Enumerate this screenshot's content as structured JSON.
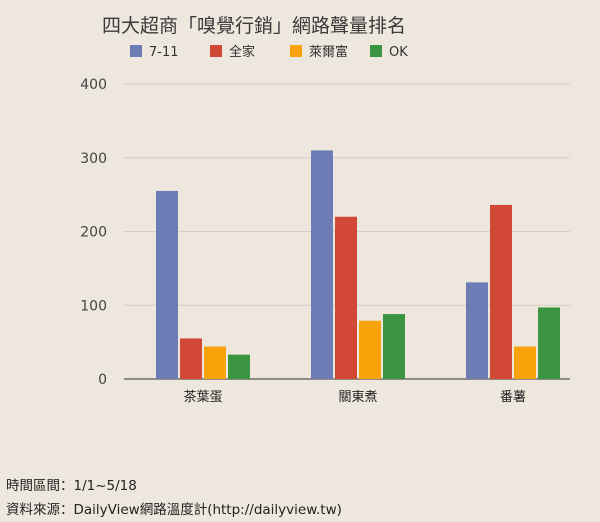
{
  "chart_data": {
    "type": "bar",
    "title": "四大超商「嗅覺行銷」網路聲量排名",
    "categories": [
      "茶葉蛋",
      "關東煮",
      "番薯"
    ],
    "series": [
      {
        "name": "7-11",
        "color": "#6d7cb5",
        "values": [
          255,
          310,
          131
        ]
      },
      {
        "name": "全家",
        "color": "#d14836",
        "values": [
          55,
          220,
          236
        ]
      },
      {
        "name": "萊爾富",
        "color": "#f9a30b",
        "values": [
          44,
          79,
          44
        ]
      },
      {
        "name": "OK",
        "color": "#3a9440",
        "values": [
          33,
          88,
          97
        ]
      }
    ],
    "yticks": [
      0,
      100,
      200,
      300,
      400
    ],
    "ylim": [
      0,
      400
    ],
    "grid": true,
    "legend_position": "top-left"
  },
  "footer": {
    "period": "時間區間：1/1~5/18",
    "source": "資料來源：DailyView網路溫度計(http://dailyview.tw)"
  }
}
